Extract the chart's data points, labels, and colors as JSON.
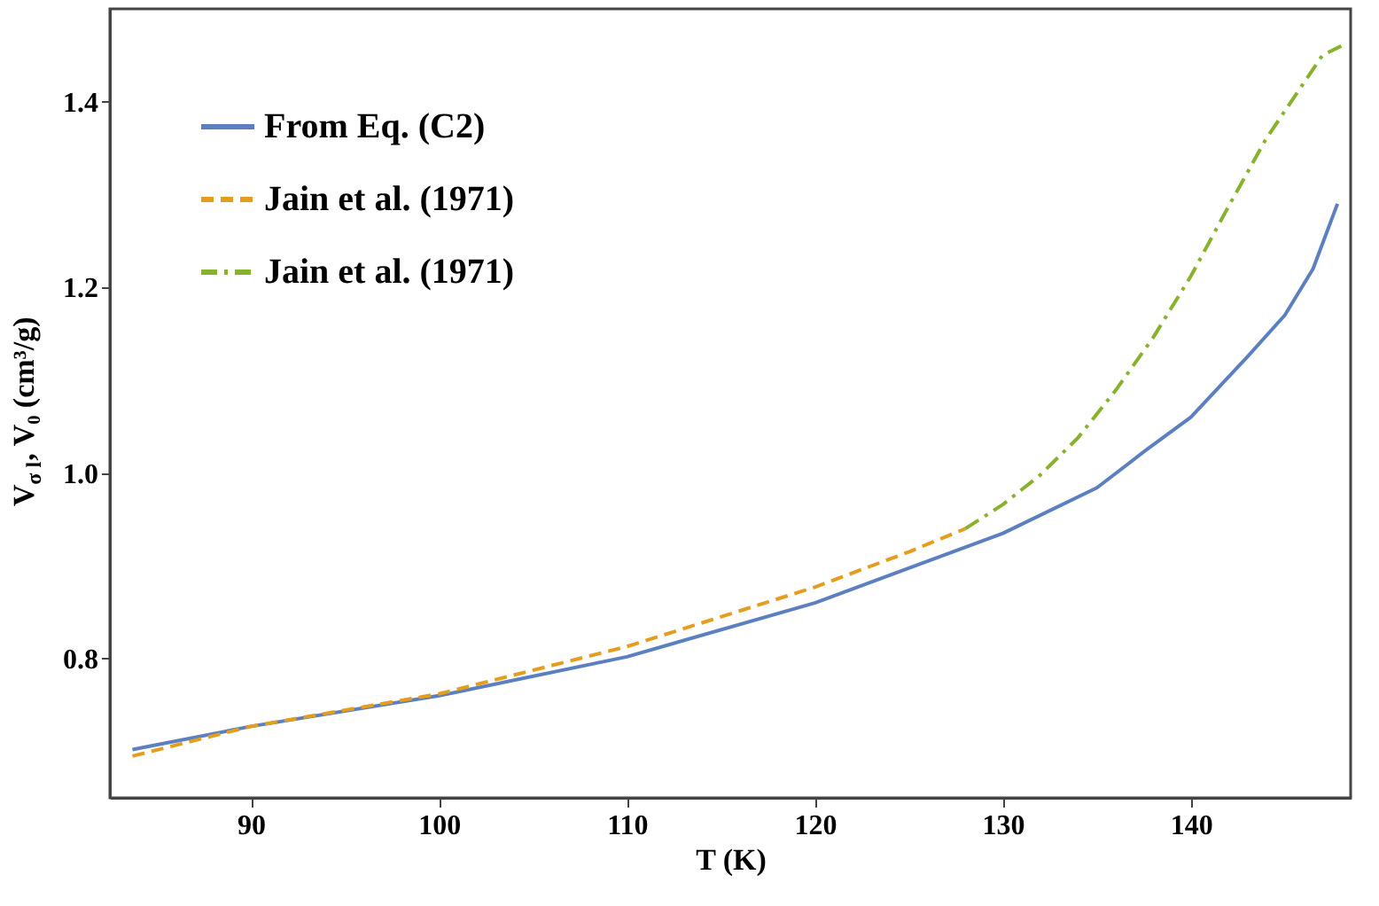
{
  "chart_data": {
    "type": "line",
    "xlabel": "T (K)",
    "ylabel": "V$_{σ l}$, V₀ (cm³/g)",
    "xlim": [
      82.5,
      148.5
    ],
    "ylim": [
      0.65,
      1.5
    ],
    "xticks": [
      90,
      100,
      110,
      120,
      130,
      140
    ],
    "yticks": [
      {
        "value": 0.8,
        "label": "0.8"
      },
      {
        "value": 1.0,
        "label": "1.0"
      },
      {
        "value": 1.2,
        "label": "1.2"
      },
      {
        "value": 1.4,
        "label": "1.4"
      }
    ],
    "grid": false,
    "legend": "top left",
    "marker": "none",
    "series": [
      {
        "name": "From Eq. (C2)",
        "color": "#5b7fbf",
        "line_style": "solid",
        "x": [
          83.7,
          90,
          100,
          110,
          120,
          130,
          135,
          137.7,
          140,
          143,
          145,
          146.5,
          147.8
        ],
        "values": [
          0.702,
          0.727,
          0.76,
          0.802,
          0.86,
          0.935,
          0.984,
          1.026,
          1.06,
          1.125,
          1.17,
          1.22,
          1.29
        ]
      },
      {
        "name": "Jain et al. (1971)",
        "color": "#e59d1e",
        "line_style": "dashed",
        "x": [
          83.7,
          90,
          100,
          110,
          120,
          125,
          128
        ],
        "values": [
          0.695,
          0.727,
          0.762,
          0.813,
          0.877,
          0.915,
          0.94
        ]
      },
      {
        "name": "Jain et al. (1971)",
        "color": "#86b22c",
        "line_style": "dashdot",
        "x": [
          128,
          130,
          132,
          134,
          136,
          138,
          140,
          142,
          144,
          146,
          147,
          148
        ],
        "values": [
          0.94,
          0.966,
          0.998,
          1.038,
          1.089,
          1.146,
          1.212,
          1.287,
          1.36,
          1.42,
          1.45,
          1.46
        ]
      }
    ]
  }
}
